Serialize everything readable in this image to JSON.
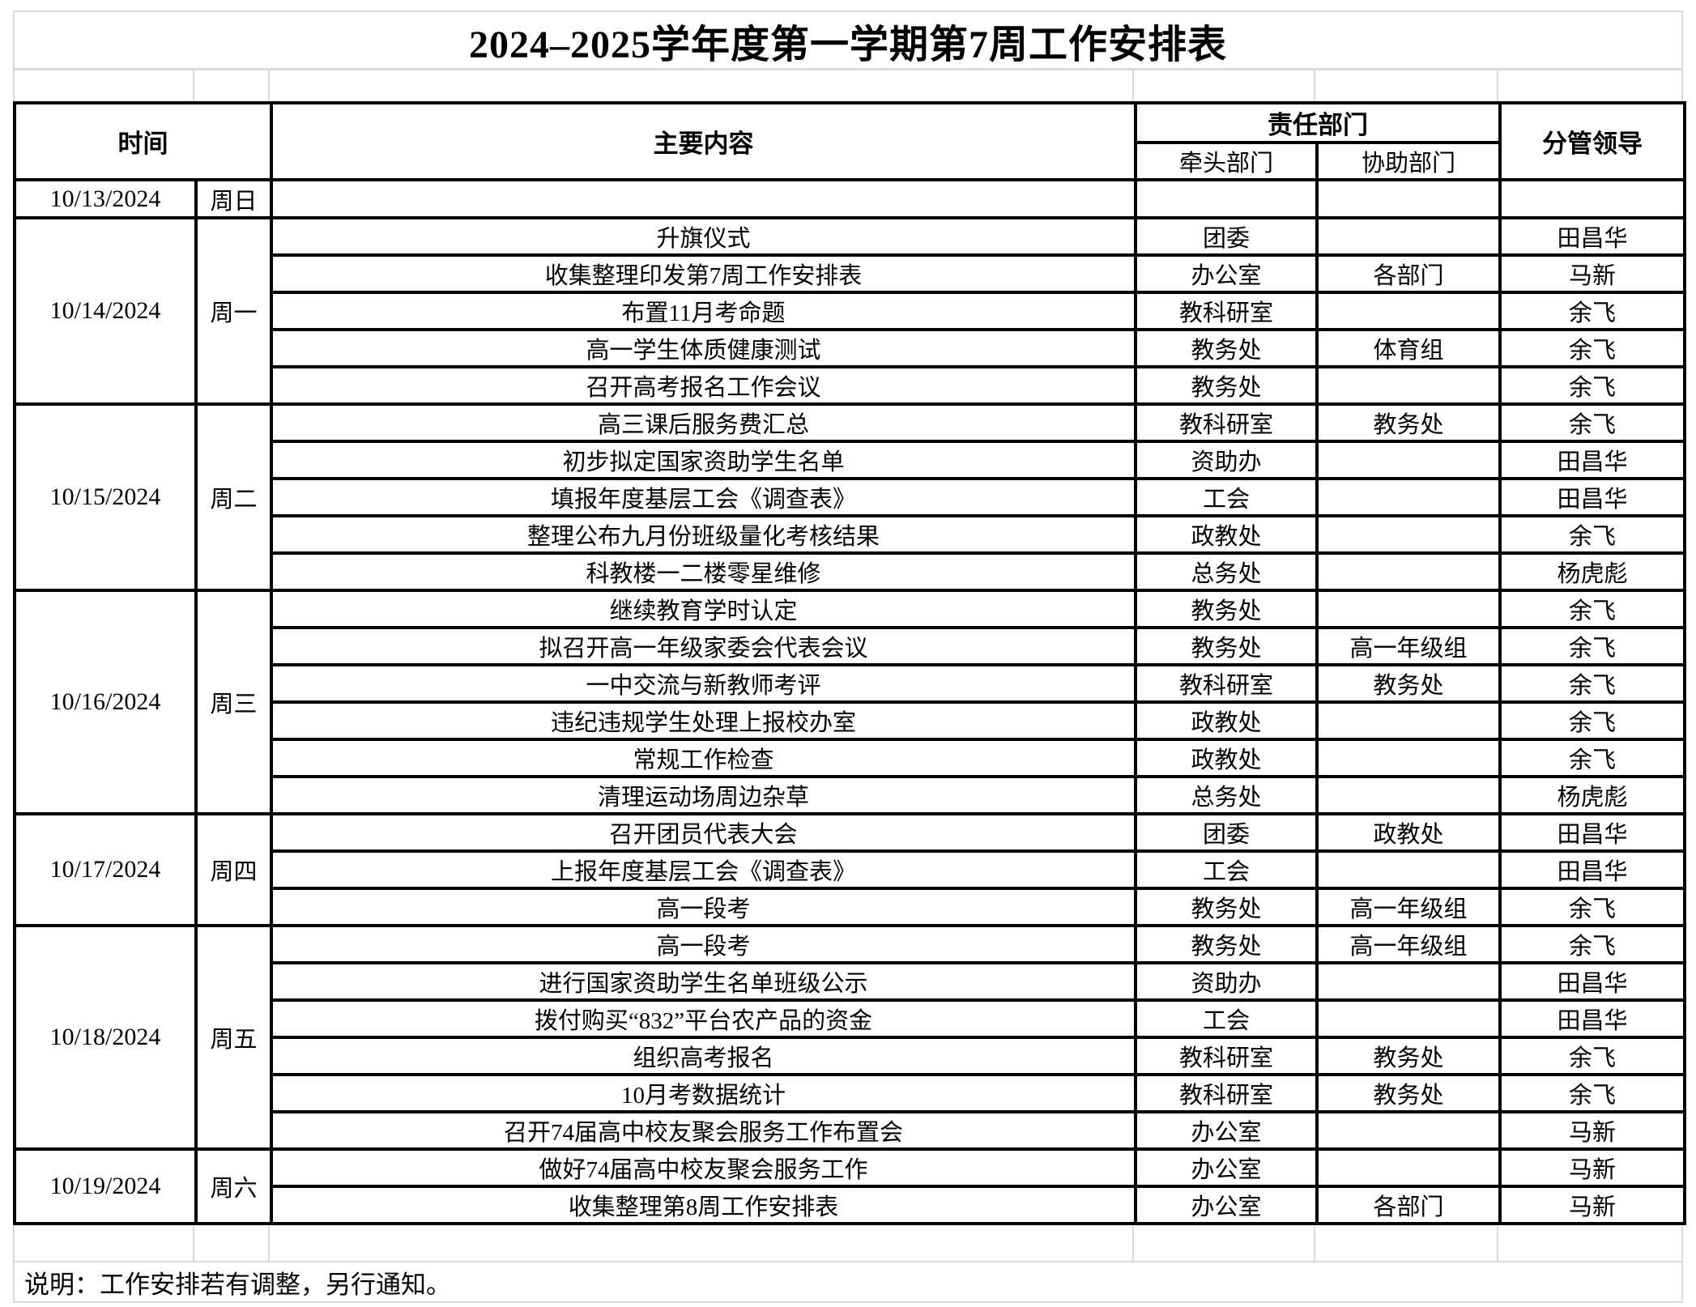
{
  "title": "2024–2025学年度第一学期第7周工作安排表",
  "header": {
    "time": "时间",
    "content": "主要内容",
    "responsible": "责任部门",
    "lead": "牵头部门",
    "assist": "协助部门",
    "leader": "分管领导"
  },
  "days": [
    {
      "date": "10/13/2024",
      "day": "周日",
      "tasks": [
        {
          "content": "",
          "lead": "",
          "assist": "",
          "leader": ""
        }
      ]
    },
    {
      "date": "10/14/2024",
      "day": "周一",
      "tasks": [
        {
          "content": "升旗仪式",
          "lead": "团委",
          "assist": "",
          "leader": "田昌华"
        },
        {
          "content": "收集整理印发第7周工作安排表",
          "lead": "办公室",
          "assist": "各部门",
          "leader": "马新"
        },
        {
          "content": "布置11月考命题",
          "lead": "教科研室",
          "assist": "",
          "leader": "余飞"
        },
        {
          "content": "高一学生体质健康测试",
          "lead": "教务处",
          "assist": "体育组",
          "leader": "余飞"
        },
        {
          "content": "召开高考报名工作会议",
          "lead": "教务处",
          "assist": "",
          "leader": "余飞"
        }
      ]
    },
    {
      "date": "10/15/2024",
      "day": "周二",
      "tasks": [
        {
          "content": "高三课后服务费汇总",
          "lead": "教科研室",
          "assist": "教务处",
          "leader": "余飞"
        },
        {
          "content": "初步拟定国家资助学生名单",
          "lead": "资助办",
          "assist": "",
          "leader": "田昌华"
        },
        {
          "content": "填报年度基层工会《调查表》",
          "lead": "工会",
          "assist": "",
          "leader": "田昌华"
        },
        {
          "content": "整理公布九月份班级量化考核结果",
          "lead": "政教处",
          "assist": "",
          "leader": "余飞"
        },
        {
          "content": "科教楼一二楼零星维修",
          "lead": "总务处",
          "assist": "",
          "leader": "杨虎彪"
        }
      ]
    },
    {
      "date": "10/16/2024",
      "day": "周三",
      "tasks": [
        {
          "content": "继续教育学时认定",
          "lead": "教务处",
          "assist": "",
          "leader": "余飞"
        },
        {
          "content": "拟召开高一年级家委会代表会议",
          "lead": "教务处",
          "assist": "高一年级组",
          "leader": "余飞"
        },
        {
          "content": "一中交流与新教师考评",
          "lead": "教科研室",
          "assist": "教务处",
          "leader": "余飞"
        },
        {
          "content": "违纪违规学生处理上报校办室",
          "lead": "政教处",
          "assist": "",
          "leader": "余飞"
        },
        {
          "content": "常规工作检查",
          "lead": "政教处",
          "assist": "",
          "leader": "余飞"
        },
        {
          "content": "清理运动场周边杂草",
          "lead": "总务处",
          "assist": "",
          "leader": "杨虎彪"
        }
      ]
    },
    {
      "date": "10/17/2024",
      "day": "周四",
      "tasks": [
        {
          "content": "召开团员代表大会",
          "lead": "团委",
          "assist": "政教处",
          "leader": "田昌华"
        },
        {
          "content": "上报年度基层工会《调查表》",
          "lead": "工会",
          "assist": "",
          "leader": "田昌华"
        },
        {
          "content": "高一段考",
          "lead": "教务处",
          "assist": "高一年级组",
          "leader": "余飞"
        }
      ]
    },
    {
      "date": "10/18/2024",
      "day": "周五",
      "tasks": [
        {
          "content": "高一段考",
          "lead": "教务处",
          "assist": "高一年级组",
          "leader": "余飞"
        },
        {
          "content": "进行国家资助学生名单班级公示",
          "lead": "资助办",
          "assist": "",
          "leader": "田昌华"
        },
        {
          "content": "拨付购买“832”平台农产品的资金",
          "lead": "工会",
          "assist": "",
          "leader": "田昌华"
        },
        {
          "content": "组织高考报名",
          "lead": "教科研室",
          "assist": "教务处",
          "leader": "余飞"
        },
        {
          "content": "10月考数据统计",
          "lead": "教科研室",
          "assist": "教务处",
          "leader": "余飞"
        },
        {
          "content": "召开74届高中校友聚会服务工作布置会",
          "lead": "办公室",
          "assist": "",
          "leader": "马新"
        }
      ]
    },
    {
      "date": "10/19/2024",
      "day": "周六",
      "tasks": [
        {
          "content": "做好74届高中校友聚会服务工作",
          "lead": "办公室",
          "assist": "",
          "leader": "马新"
        },
        {
          "content": "收集整理第8周工作安排表",
          "lead": "办公室",
          "assist": "各部门",
          "leader": "马新"
        }
      ]
    }
  ],
  "note": "说明：工作安排若有调整，另行通知。",
  "colors": {
    "background": "#ffffff",
    "text": "#000000",
    "table_border": "#000000",
    "grid_line": "#d9d9d9"
  }
}
